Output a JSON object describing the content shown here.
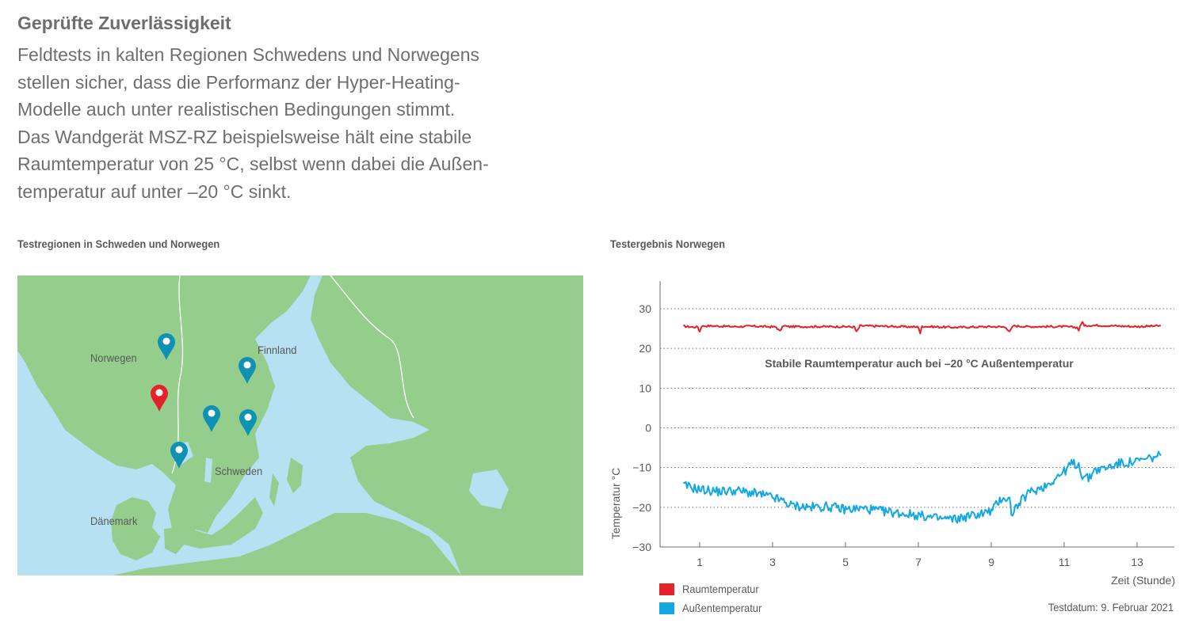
{
  "heading": "Geprüfte Zuverlässigkeit",
  "paragraph_lines": [
    "Feldtests in kalten Regionen Schwedens und Norwegens",
    "stellen sicher, dass die Performanz der Hyper-Heating-",
    "Modelle auch unter realistischen Bedingungen stimmt.",
    "Das Wandgerät MSZ-RZ beispielsweise hält eine stabile",
    "Raumtemperatur von 25 °C, selbst wenn dabei die Außen-",
    "temperatur auf unter –20 °C sinkt."
  ],
  "map": {
    "title": "Testregionen in Schweden und Norwegen",
    "labels": {
      "norway": "Norwegen",
      "finland": "Finnland",
      "sweden": "Schweden",
      "denmark": "Dänemark"
    },
    "colors": {
      "water": "#b7e0f2",
      "land": "#95cd8c",
      "pin_primary": "#e42229",
      "pin_secondary": "#0f91b5"
    },
    "pins": [
      {
        "region": "Norwegen",
        "color": "pin_secondary"
      },
      {
        "region": "Norwegen",
        "color": "pin_primary"
      },
      {
        "region": "Schweden",
        "color": "pin_secondary"
      },
      {
        "region": "Schweden",
        "color": "pin_secondary"
      },
      {
        "region": "Schweden",
        "color": "pin_secondary"
      },
      {
        "region": "Schweden",
        "color": "pin_secondary"
      }
    ]
  },
  "chart": {
    "title": "Testergebnis Norwegen",
    "annotation": "Stabile Raumtemperatur auch bei –20 °C Außentemperatur",
    "test_date": "Testdatum: 9. Februar 2021",
    "legend": [
      {
        "label": "Raumtemperatur",
        "color": "#e42229"
      },
      {
        "label": "Außentemperatur",
        "color": "#13a7e3"
      }
    ]
  },
  "chart_data": {
    "type": "line",
    "xlabel": "Zeit (Stunde)",
    "ylabel": "Temperatur °C",
    "xlim": [
      0.3,
      14.4
    ],
    "ylim": [
      -30,
      35
    ],
    "xticks": [
      1,
      3,
      5,
      7,
      9,
      11,
      13
    ],
    "yticks": [
      30,
      20,
      10,
      0,
      -10,
      -20,
      -30
    ],
    "grid": "horizontal dotted",
    "series": [
      {
        "name": "Raumtemperatur",
        "color": "#e42229",
        "x": [
          0.55,
          0.8,
          0.95,
          1.0,
          1.05,
          1.2,
          2.0,
          2.5,
          3.1,
          3.2,
          3.3,
          3.4,
          4.0,
          5.0,
          5.25,
          5.3,
          5.4,
          6.0,
          7.0,
          7.05,
          7.1,
          7.3,
          8.0,
          9.0,
          9.4,
          9.5,
          9.6,
          10.0,
          11.0,
          11.35,
          11.4,
          11.5,
          11.55,
          11.65,
          12.0,
          13.0,
          13.65
        ],
        "y": [
          25.6,
          25.4,
          25.4,
          24.2,
          25.6,
          25.7,
          25.5,
          25.6,
          25.4,
          24.3,
          25.8,
          25.5,
          25.5,
          25.5,
          25.4,
          24.1,
          25.7,
          25.6,
          25.4,
          23.8,
          25.6,
          25.5,
          25.3,
          25.5,
          25.4,
          24.1,
          25.7,
          25.5,
          25.5,
          25.3,
          24.6,
          26.9,
          25.6,
          25.8,
          25.8,
          25.5,
          25.7
        ]
      },
      {
        "name": "Außentemperatur",
        "color": "#13a7e3",
        "x": [
          0.55,
          1.0,
          1.5,
          2.0,
          2.5,
          3.0,
          3.3,
          3.5,
          4.0,
          4.5,
          5.0,
          5.5,
          6.0,
          6.5,
          7.0,
          7.5,
          8.0,
          8.5,
          9.0,
          9.3,
          9.5,
          9.55,
          10.0,
          10.5,
          11.0,
          11.2,
          11.4,
          11.5,
          11.7,
          11.8,
          12.0,
          12.5,
          13.0,
          13.65
        ],
        "y": [
          -14.5,
          -15.5,
          -16.0,
          -15.8,
          -16.5,
          -17.5,
          -18.5,
          -19.5,
          -20.0,
          -19.8,
          -20.5,
          -20.3,
          -21.0,
          -21.5,
          -22.0,
          -22.8,
          -23.0,
          -22.0,
          -21.0,
          -17.5,
          -18.0,
          -21.5,
          -16.5,
          -14.5,
          -11.0,
          -9.0,
          -9.3,
          -12.0,
          -12.8,
          -10.5,
          -10.5,
          -9.0,
          -8.5,
          -7.0
        ]
      }
    ]
  }
}
